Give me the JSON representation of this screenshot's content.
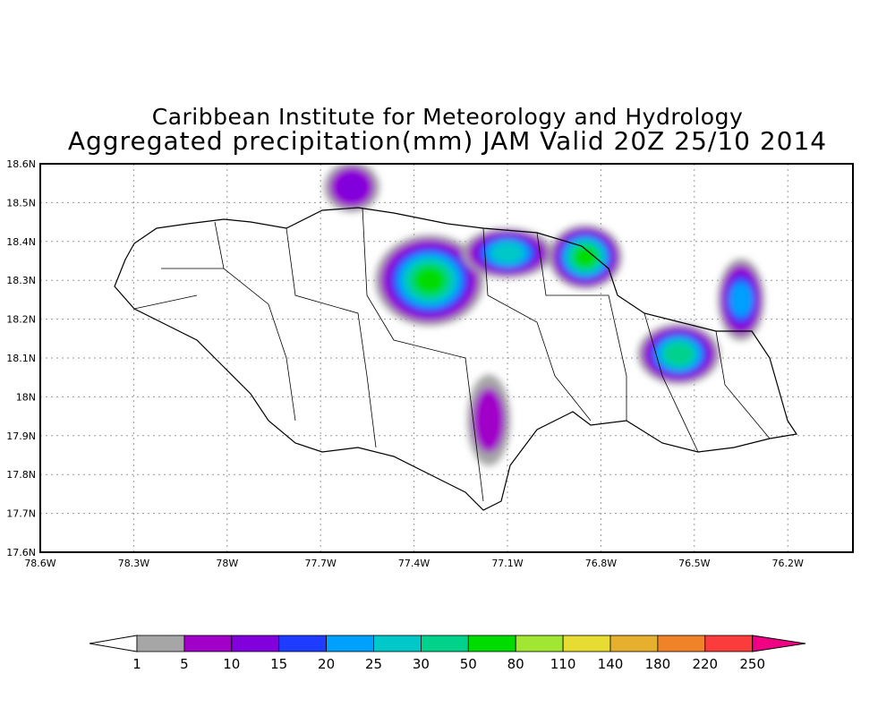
{
  "chart_data": {
    "type": "heatmap",
    "title": "Caribbean Institute for Meteorology and Hydrology",
    "subtitle": "Aggregated precipitation(mm) JAM Valid 20Z 25/10 2014",
    "x_ticks": [
      "78.6W",
      "78.3W",
      "78W",
      "77.7W",
      "77.4W",
      "77.1W",
      "76.8W",
      "76.5W",
      "76.2W"
    ],
    "x_values": [
      -78.6,
      -78.3,
      -78.0,
      -77.7,
      -77.4,
      -77.1,
      -76.8,
      -76.5,
      -76.2
    ],
    "y_ticks": [
      "17.6N",
      "17.7N",
      "17.8N",
      "17.9N",
      "18N",
      "18.1N",
      "18.2N",
      "18.3N",
      "18.4N",
      "18.5N",
      "18.6N"
    ],
    "y_values": [
      17.6,
      17.7,
      17.8,
      17.9,
      18.0,
      18.1,
      18.2,
      18.3,
      18.4,
      18.5,
      18.6
    ],
    "xlim": [
      -78.6,
      -76.0
    ],
    "ylim": [
      17.6,
      18.6
    ],
    "grid": true,
    "colorbar": {
      "labels": [
        "1",
        "5",
        "10",
        "15",
        "20",
        "25",
        "30",
        "50",
        "80",
        "110",
        "140",
        "180",
        "220",
        "250"
      ],
      "colors": [
        "#a6a6a6",
        "#a000c8",
        "#8200dc",
        "#1e3cff",
        "#00a0ff",
        "#00c8c8",
        "#00d28c",
        "#00dc00",
        "#a0e632",
        "#e6dc32",
        "#e6af2d",
        "#f08228",
        "#fa3c3c",
        "#f00082"
      ]
    },
    "cells": [
      {
        "lon": -77.35,
        "lat": 18.3,
        "level": 8
      },
      {
        "lon": -77.1,
        "lat": 18.37,
        "level": 6
      },
      {
        "lon": -76.85,
        "lat": 18.36,
        "level": 8
      },
      {
        "lon": -76.55,
        "lat": 18.11,
        "level": 7
      },
      {
        "lon": -76.35,
        "lat": 18.25,
        "level": 5
      },
      {
        "lon": -77.6,
        "lat": 18.54,
        "level": 3
      },
      {
        "lon": -77.16,
        "lat": 17.94,
        "level": 2
      }
    ]
  }
}
